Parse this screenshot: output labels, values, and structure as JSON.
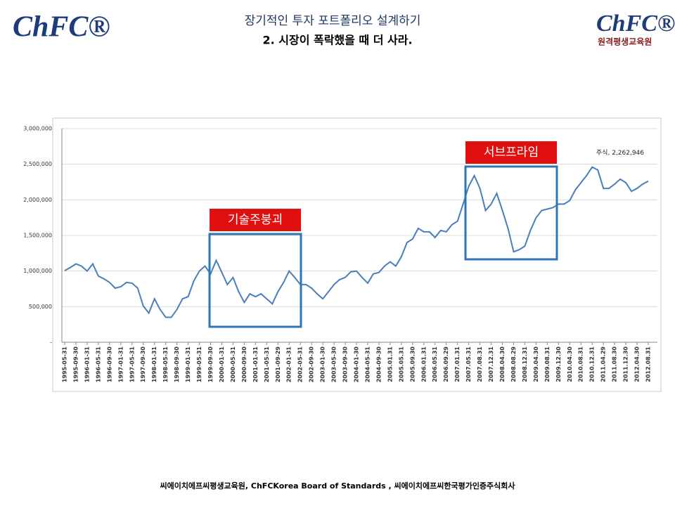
{
  "header": {
    "title": "장기적인 투자 포트폴리오 설계하기",
    "subtitle": "2. 시장이 폭락했을 때 더 사라.",
    "logo_left": "ChFC®",
    "logo_right": "ChFC®",
    "logo_right_sub": "원격평생교육원"
  },
  "footer": "씨에이치에프씨평생교육원,  ChFCKorea  Board  of  Standards  , 씨에이치에프씨한국평가인증주식회사",
  "chart_data": {
    "type": "line",
    "color": "#4a7ebb",
    "grid": true,
    "categories": [
      "1995-05-31",
      null,
      "1995-09-30",
      null,
      "1996-01-31",
      null,
      "1996-05-31",
      null,
      "1996-09-30",
      null,
      "1997-01-31",
      null,
      "1997-05-31",
      null,
      "1997-09-30",
      null,
      "1998-01-31",
      null,
      "1998-05-31",
      null,
      "1998-09-30",
      null,
      "1999-01-31",
      null,
      "1999-05-31",
      null,
      "1999-09-30",
      null,
      "2000-01-31",
      null,
      "2000-05-31",
      null,
      "2000-09-30",
      null,
      "2001-01-31",
      null,
      "2001-05-31",
      null,
      "2001-09-29",
      null,
      "2002-01-31",
      null,
      "2002-05-31",
      null,
      "2002-09-30",
      null,
      "2003-01-30",
      null,
      "2003-05-30",
      null,
      "2003-09-30",
      null,
      "2004-01-30",
      null,
      "2004-05-31",
      null,
      "2004-09-30",
      null,
      "2005.01.31",
      null,
      "2005.05.31",
      null,
      "2005.09.30",
      null,
      "2006.01.31",
      null,
      "2006.05.31",
      null,
      "2006.09.29",
      null,
      "2007.01.31",
      null,
      "2007.05.31",
      null,
      "2007.08.31",
      null,
      "2007.12.31",
      null,
      "2008.04.30",
      null,
      "2008.08.29",
      null,
      "2008.12.31",
      null,
      "2009.04.30",
      null,
      "2009.08.31",
      null,
      "2009.12.30",
      null,
      "2010.04.30",
      null,
      "2010.08.31",
      null,
      "2010.12.31",
      null,
      "2011.04.29",
      null,
      "2011.08.30",
      null,
      "2011.12.30",
      null,
      "2012.04.30",
      null,
      "2012.08.31"
    ],
    "values": [
      1006000,
      1050000,
      1100000,
      1070000,
      1000000,
      1100000,
      930000,
      890000,
      840000,
      760000,
      780000,
      840000,
      830000,
      760000,
      510000,
      410000,
      610000,
      460000,
      350000,
      350000,
      460000,
      610000,
      640000,
      860000,
      1000000,
      1070000,
      960000,
      1150000,
      980000,
      810000,
      910000,
      710000,
      560000,
      680000,
      640000,
      680000,
      610000,
      540000,
      710000,
      840000,
      1000000,
      910000,
      810000,
      810000,
      760000,
      680000,
      610000,
      710000,
      810000,
      880000,
      910000,
      990000,
      1000000,
      910000,
      830000,
      960000,
      980000,
      1070000,
      1130000,
      1070000,
      1200000,
      1400000,
      1450000,
      1600000,
      1550000,
      1550000,
      1470000,
      1570000,
      1550000,
      1650000,
      1700000,
      1940000,
      2190000,
      2340000,
      2160000,
      1850000,
      1940000,
      2090000,
      1850000,
      1600000,
      1270000,
      1300000,
      1350000,
      1570000,
      1750000,
      1850000,
      1870000,
      1890000,
      1940000,
      1940000,
      1990000,
      2140000,
      2240000,
      2340000,
      2460000,
      2420000,
      2160000,
      2160000,
      2220000,
      2290000,
      2240000,
      2120000,
      2160000,
      2220000,
      2262946
    ],
    "end_label": "주식, 2,262,946",
    "ylim": [
      0,
      3000000
    ],
    "yticks": [
      {
        "value": 0,
        "label": "-"
      },
      {
        "value": 500000,
        "label": "500,000"
      },
      {
        "value": 1000000,
        "label": "1,000,000"
      },
      {
        "value": 1500000,
        "label": "1,500,000"
      },
      {
        "value": 2000000,
        "label": "2,000,000"
      },
      {
        "value": 2500000,
        "label": "2,500,000"
      },
      {
        "value": 3000000,
        "label": "3,000,000"
      }
    ],
    "annotations": [
      "기술주붕괴",
      "서브프라임"
    ]
  }
}
